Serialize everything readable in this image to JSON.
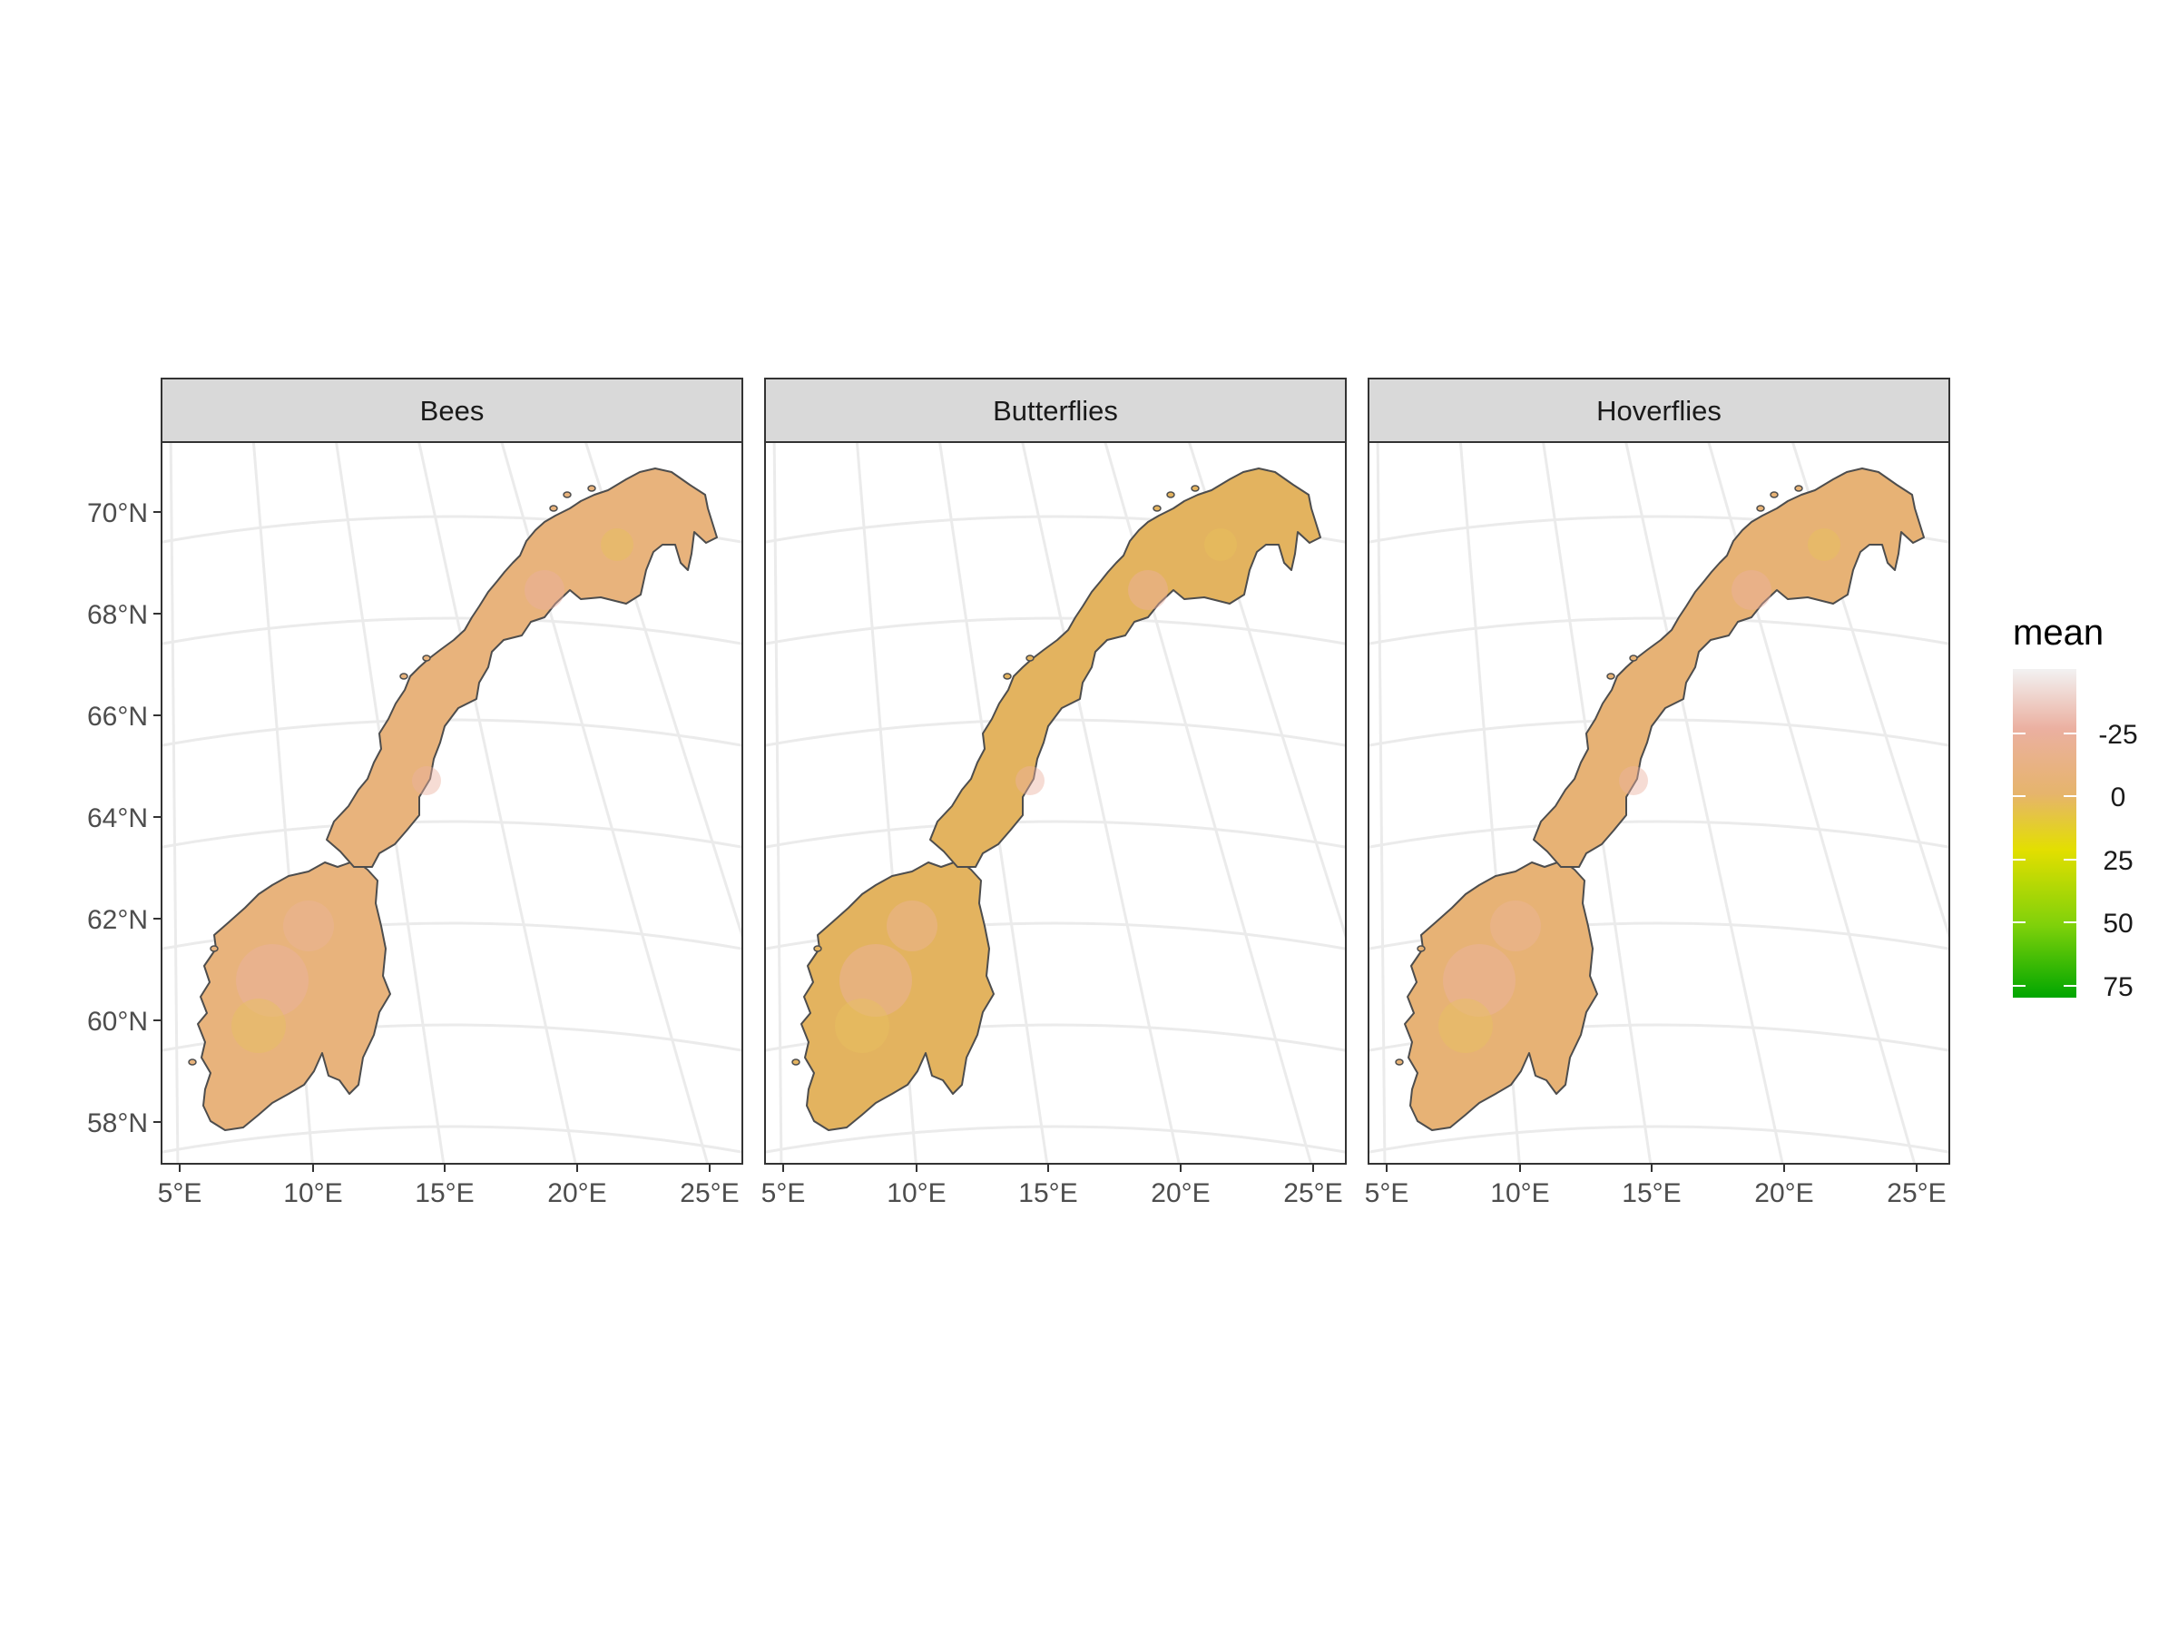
{
  "panels": [
    {
      "label": "Bees",
      "tint": "#e8b37c"
    },
    {
      "label": "Butterflies",
      "tint": "#e3b35f"
    },
    {
      "label": "Hoverflies",
      "tint": "#e7b275"
    }
  ],
  "axes": {
    "lat_ticks": [
      "58°N",
      "60°N",
      "62°N",
      "64°N",
      "66°N",
      "68°N",
      "70°N"
    ],
    "lon_ticks": [
      "5°E",
      "10°E",
      "15°E",
      "20°E",
      "25°E"
    ]
  },
  "legend": {
    "title": "mean",
    "labels": [
      "-25",
      "0",
      "25",
      "50",
      "75"
    ],
    "colors": [
      "#f2f2f2",
      "#ebb0a1",
      "#e6b46c",
      "#e3df00",
      "#7fd10a",
      "#00a600"
    ]
  },
  "colors": {
    "strip_fill": "#d9d9d9",
    "panel_border": "#333333",
    "grid": "#ebebeb",
    "country_outline": "#4d4d4d"
  }
}
